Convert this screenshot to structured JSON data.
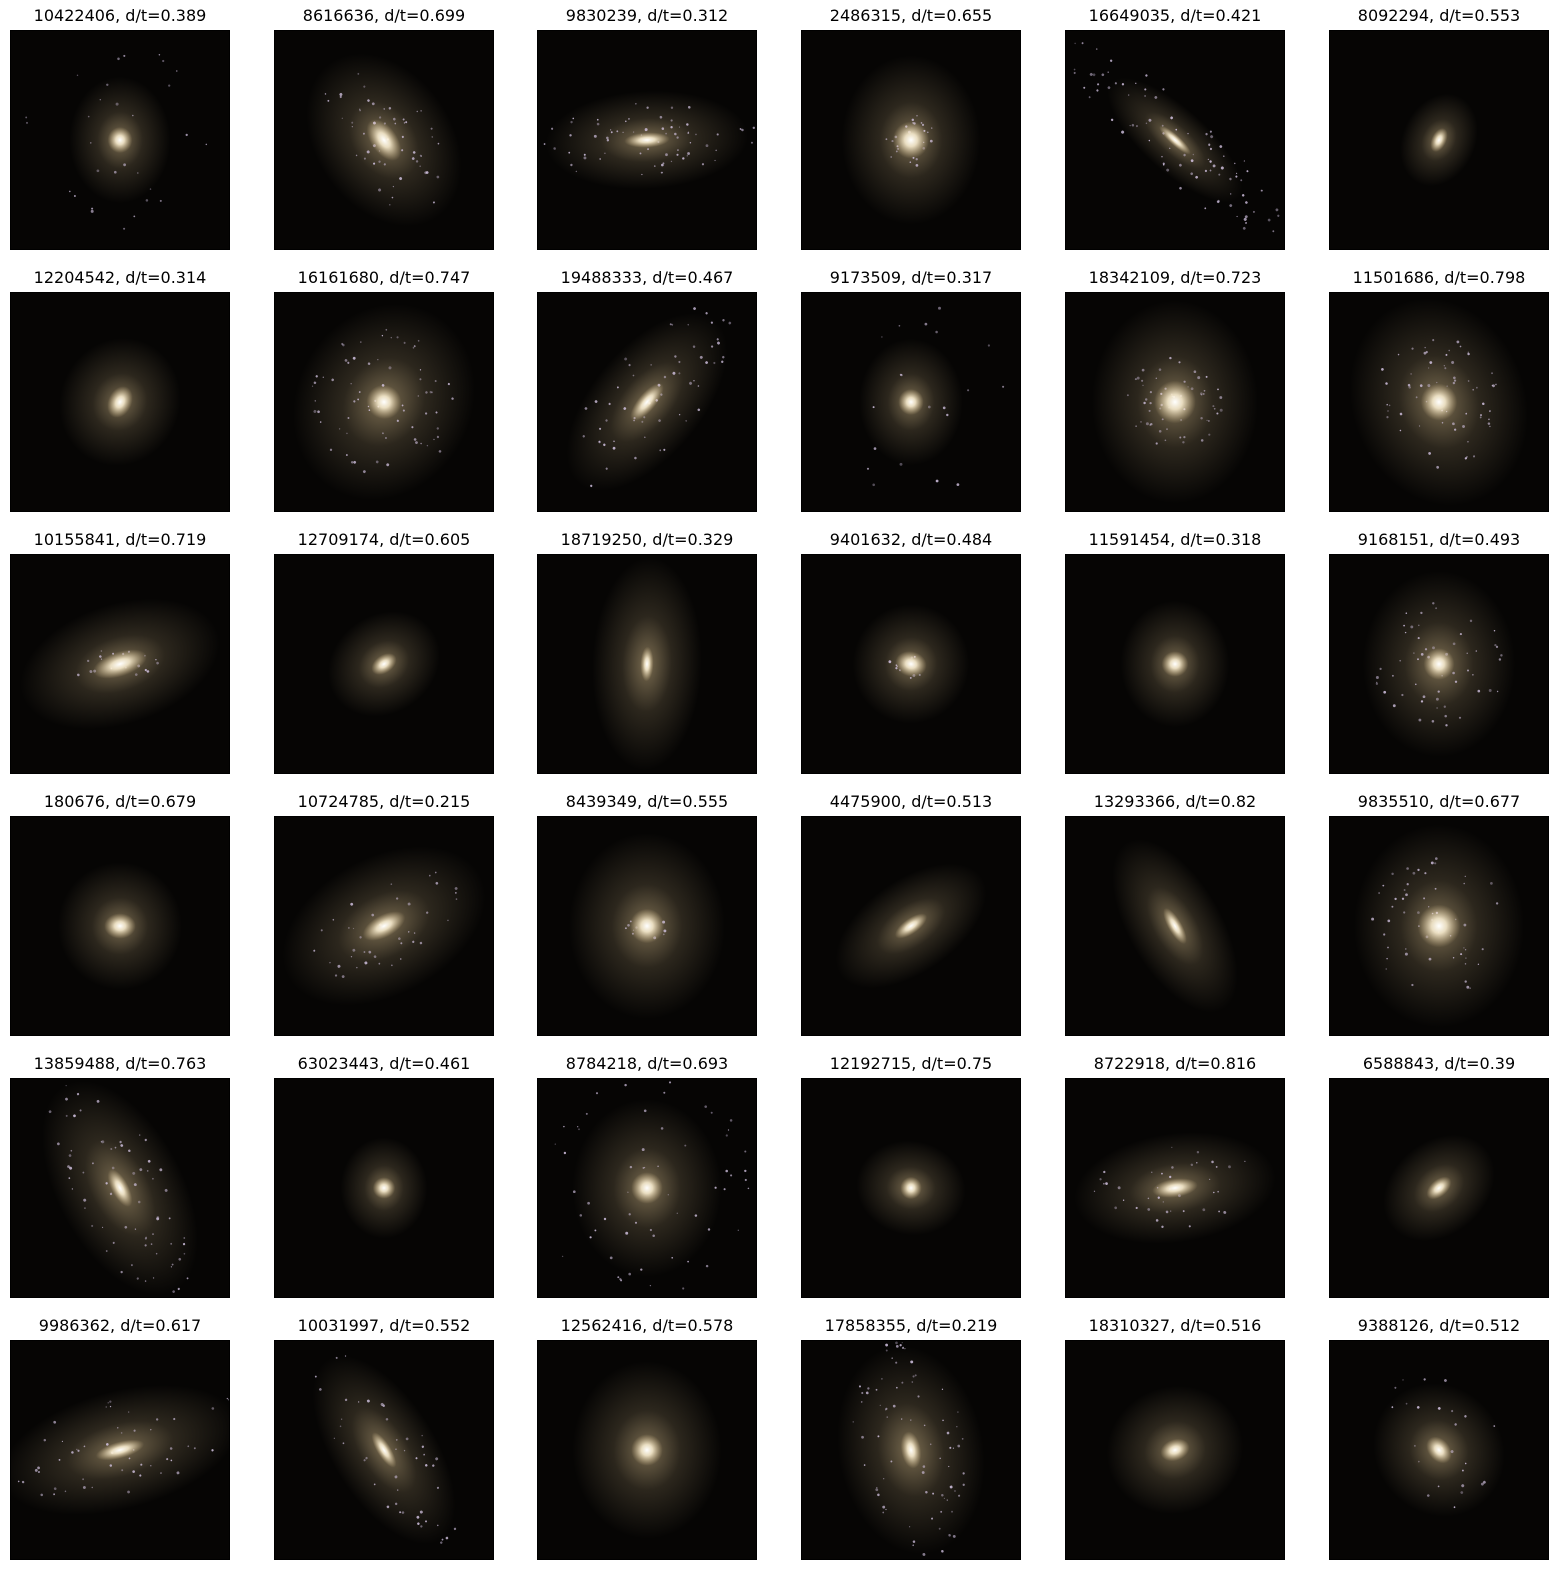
{
  "figure": {
    "background": "#ffffff",
    "panel_background": "#060504",
    "galaxy_core_color": "#fff3d6",
    "galaxy_halo_color": "#d9c08f",
    "star_cluster_color": "#d8c8e8"
  },
  "panels": [
    {
      "title": "10422406, d/t=0.389",
      "glow": 0.45,
      "core": 0.1,
      "elong": 1.0,
      "angle": 0,
      "clusters": 30,
      "spread": 0.45
    },
    {
      "title": "8616636, d/t=0.699",
      "glow": 0.75,
      "core": 0.18,
      "elong": 2.3,
      "angle": 55,
      "clusters": 55,
      "spread": 0.4
    },
    {
      "title": "9830239, d/t=0.312",
      "glow": 0.7,
      "core": 0.12,
      "elong": 3.5,
      "angle": -3,
      "clusters": 70,
      "spread": 0.5
    },
    {
      "title": "2486315, d/t=0.655",
      "glow": 0.7,
      "core": 0.18,
      "elong": 1.1,
      "angle": 0,
      "clusters": 25,
      "spread": 0.12
    },
    {
      "title": "16649035, d/t=0.421",
      "glow": 0.55,
      "core": 0.1,
      "elong": 5.0,
      "angle": 42,
      "clusters": 90,
      "spread": 0.65
    },
    {
      "title": "8092294, d/t=0.553",
      "glow": 0.25,
      "core": 0.06,
      "elong": 2.2,
      "angle": -65,
      "clusters": 0,
      "spread": 0.1
    },
    {
      "title": "12204542, d/t=0.314",
      "glow": 0.5,
      "core": 0.12,
      "elong": 1.8,
      "angle": -65,
      "clusters": 0,
      "spread": 0.1
    },
    {
      "title": "16161680, d/t=0.747",
      "glow": 0.9,
      "core": 0.16,
      "elong": 1.3,
      "angle": 30,
      "clusters": 70,
      "spread": 0.35
    },
    {
      "title": "19488333, d/t=0.467",
      "glow": 0.75,
      "core": 0.14,
      "elong": 3.2,
      "angle": -50,
      "clusters": 60,
      "spread": 0.55
    },
    {
      "title": "9173509, d/t=0.317",
      "glow": 0.45,
      "core": 0.1,
      "elong": 1.1,
      "angle": 0,
      "clusters": 20,
      "spread": 0.45
    },
    {
      "title": "18342109, d/t=0.723",
      "glow": 0.9,
      "core": 0.22,
      "elong": 1.1,
      "angle": 0,
      "clusters": 60,
      "spread": 0.22
    },
    {
      "title": "11501686, d/t=0.798",
      "glow": 0.95,
      "core": 0.18,
      "elong": 1.1,
      "angle": -20,
      "clusters": 65,
      "spread": 0.3
    },
    {
      "title": "10155841, d/t=0.719",
      "glow": 0.75,
      "core": 0.2,
      "elong": 2.8,
      "angle": -18,
      "clusters": 20,
      "spread": 0.2
    },
    {
      "title": "12709174, d/t=0.605",
      "glow": 0.4,
      "core": 0.08,
      "elong": 2.0,
      "angle": -35,
      "clusters": 0,
      "spread": 0.1
    },
    {
      "title": "18719250, d/t=0.329",
      "glow": 0.75,
      "core": 0.08,
      "elong": 3.2,
      "angle": -88,
      "clusters": 0,
      "spread": 0.1
    },
    {
      "title": "9401632, d/t=0.484",
      "glow": 0.45,
      "core": 0.12,
      "elong": 1.6,
      "angle": 15,
      "clusters": 10,
      "spread": 0.1
    },
    {
      "title": "11591454, d/t=0.318",
      "glow": 0.45,
      "core": 0.1,
      "elong": 1.3,
      "angle": 0,
      "clusters": 0,
      "spread": 0.1
    },
    {
      "title": "9168151, d/t=0.493",
      "glow": 0.8,
      "core": 0.14,
      "elong": 1.1,
      "angle": 0,
      "clusters": 55,
      "spread": 0.3
    },
    {
      "title": "180676, d/t=0.679",
      "glow": 0.5,
      "core": 0.12,
      "elong": 1.6,
      "angle": 0,
      "clusters": 0,
      "spread": 0.1
    },
    {
      "title": "10724785, d/t=0.215",
      "glow": 0.85,
      "core": 0.16,
      "elong": 2.6,
      "angle": -28,
      "clusters": 40,
      "spread": 0.4
    },
    {
      "title": "8439349, d/t=0.555",
      "glow": 0.8,
      "core": 0.16,
      "elong": 1.2,
      "angle": 0,
      "clusters": 10,
      "spread": 0.1
    },
    {
      "title": "4475900, d/t=0.513",
      "glow": 0.55,
      "core": 0.1,
      "elong": 3.0,
      "angle": -35,
      "clusters": 0,
      "spread": 0.1
    },
    {
      "title": "13293366, d/t=0.82",
      "glow": 0.65,
      "core": 0.1,
      "elong": 3.5,
      "angle": 60,
      "clusters": 0,
      "spread": 0.1
    },
    {
      "title": "9835510, d/t=0.677",
      "glow": 0.9,
      "core": 0.22,
      "elong": 1.2,
      "angle": 0,
      "clusters": 55,
      "spread": 0.32
    },
    {
      "title": "13859488, d/t=0.763",
      "glow": 0.85,
      "core": 0.12,
      "elong": 3.0,
      "angle": 62,
      "clusters": 70,
      "spread": 0.55
    },
    {
      "title": "63023443, d/t=0.461",
      "glow": 0.3,
      "core": 0.07,
      "elong": 1.3,
      "angle": 0,
      "clusters": 0,
      "spread": 0.1
    },
    {
      "title": "8784218, d/t=0.693",
      "glow": 0.75,
      "core": 0.14,
      "elong": 1.2,
      "angle": 0,
      "clusters": 60,
      "spread": 0.5
    },
    {
      "title": "12192715, d/t=0.75",
      "glow": 0.35,
      "core": 0.07,
      "elong": 1.3,
      "angle": -80,
      "clusters": 0,
      "spread": 0.1
    },
    {
      "title": "8722918, d/t=0.816",
      "glow": 0.7,
      "core": 0.14,
      "elong": 3.0,
      "angle": -8,
      "clusters": 40,
      "spread": 0.45
    },
    {
      "title": "6588843, d/t=0.39",
      "glow": 0.4,
      "core": 0.08,
      "elong": 2.2,
      "angle": -40,
      "clusters": 0,
      "spread": 0.1
    },
    {
      "title": "9986362, d/t=0.617",
      "glow": 0.9,
      "core": 0.14,
      "elong": 3.5,
      "angle": -15,
      "clusters": 60,
      "spread": 0.65
    },
    {
      "title": "10031997, d/t=0.552",
      "glow": 0.75,
      "core": 0.1,
      "elong": 3.5,
      "angle": 58,
      "clusters": 45,
      "spread": 0.55
    },
    {
      "title": "12562416, d/t=0.578",
      "glow": 0.75,
      "core": 0.14,
      "elong": 1.2,
      "angle": 0,
      "clusters": 0,
      "spread": 0.1
    },
    {
      "title": "17858355, d/t=0.219",
      "glow": 0.85,
      "core": 0.12,
      "elong": 2.4,
      "angle": 80,
      "clusters": 80,
      "spread": 0.5
    },
    {
      "title": "18310327, d/t=0.516",
      "glow": 0.55,
      "core": 0.1,
      "elong": 1.8,
      "angle": -20,
      "clusters": 0,
      "spread": 0.1
    },
    {
      "title": "9388126, d/t=0.512",
      "glow": 0.55,
      "core": 0.1,
      "elong": 1.8,
      "angle": 50,
      "clusters": 25,
      "spread": 0.4
    }
  ]
}
